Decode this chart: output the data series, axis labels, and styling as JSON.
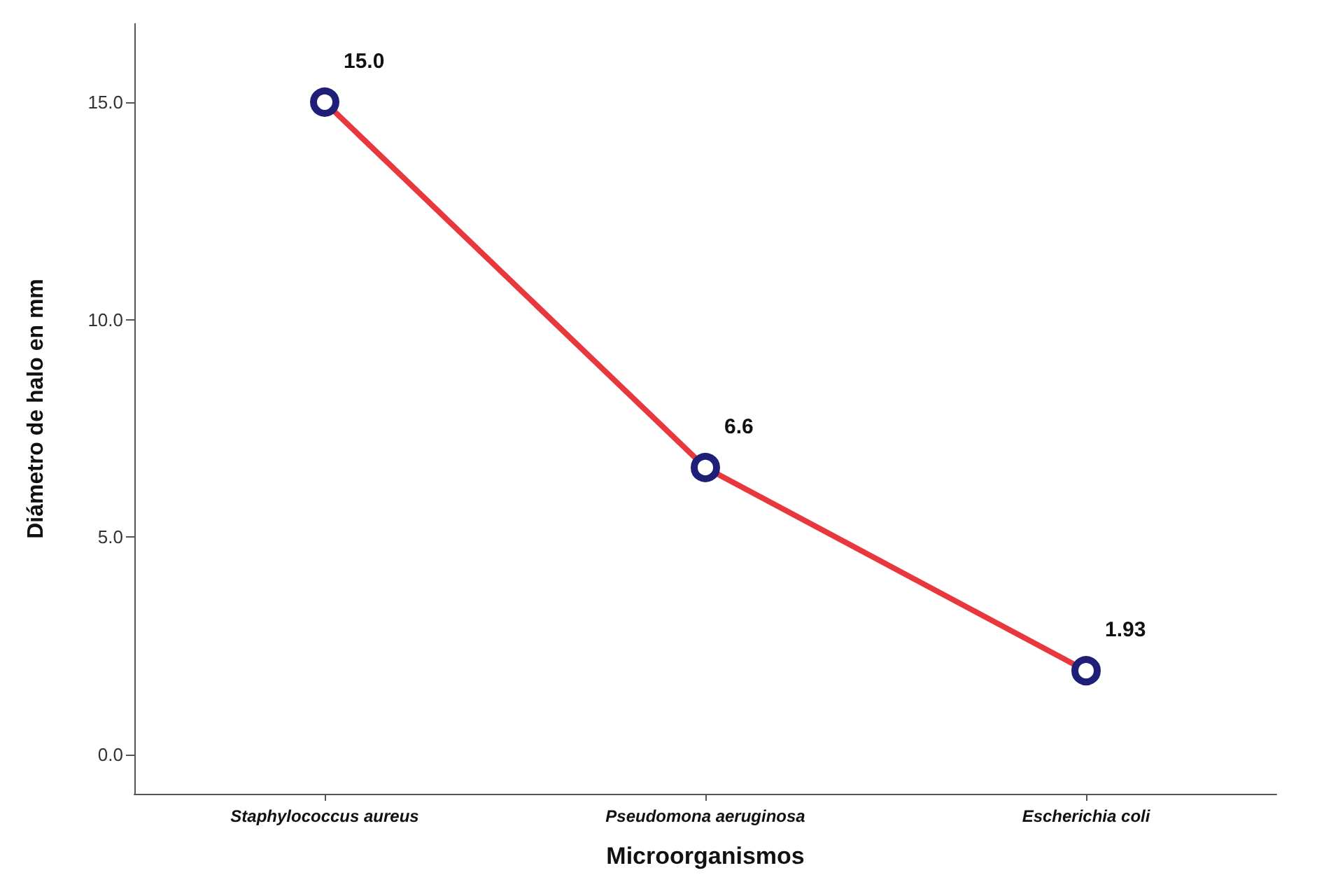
{
  "chart_data": {
    "type": "line",
    "xlabel": "Microorganismos",
    "ylabel": "Diámetro de halo en mm",
    "categories": [
      "Staphylococcus aureus",
      "Pseudomona aeruginosa",
      "Escherichia coli"
    ],
    "series": [
      {
        "color": "#e8383d",
        "values": [
          15.0,
          6.6,
          1.93
        ],
        "value_labels": [
          "15.0",
          "6.6",
          "1.93"
        ]
      }
    ],
    "ylim": [
      -0.9,
      16.8
    ],
    "yticks": [
      {
        "value": 0,
        "label": "0.0"
      },
      {
        "value": 5,
        "label": "5.0"
      },
      {
        "value": 10,
        "label": "10.0"
      },
      {
        "value": 15,
        "label": "15.0"
      }
    ],
    "marker": "circle",
    "line_style": "solid",
    "grid": false
  }
}
